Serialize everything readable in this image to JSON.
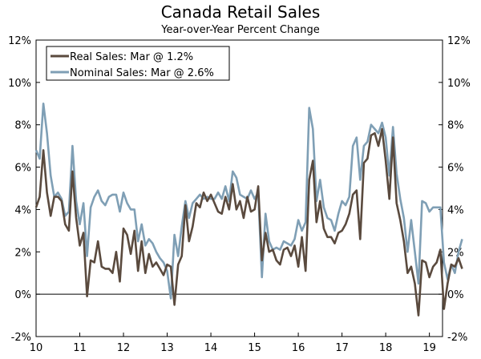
{
  "chart_data": {
    "type": "line",
    "title": "Canada Retail Sales",
    "subtitle": "Year-over-Year Percent Change",
    "xlabel": "",
    "ylabel": "",
    "xlim": [
      2010.0,
      2019.3
    ],
    "ylim": [
      -2,
      12
    ],
    "x_ticks": [
      2010,
      2011,
      2012,
      2013,
      2014,
      2015,
      2016,
      2017,
      2018,
      2019
    ],
    "x_tick_labels": [
      "10",
      "11",
      "12",
      "13",
      "14",
      "15",
      "16",
      "17",
      "18",
      "19"
    ],
    "y_ticks": [
      -2,
      0,
      2,
      4,
      6,
      8,
      10,
      12
    ],
    "y_tick_labels": [
      "-2%",
      "0%",
      "2%",
      "4%",
      "6%",
      "8%",
      "10%",
      "12%"
    ],
    "grid": false,
    "zero_line": true,
    "legend_position": "top-left",
    "series": [
      {
        "name": "Real Sales: Mar @ 1.2%",
        "color": "#5a4a3e",
        "x_start": 2010.0,
        "step": 0.08333,
        "values": [
          4.1,
          4.6,
          6.8,
          4.8,
          3.7,
          4.6,
          4.6,
          4.4,
          3.3,
          3.0,
          5.8,
          3.6,
          2.3,
          2.9,
          -0.1,
          1.6,
          1.5,
          2.5,
          1.3,
          1.2,
          1.2,
          1.0,
          2.0,
          0.6,
          3.1,
          2.8,
          1.9,
          3.0,
          1.1,
          2.5,
          1.0,
          1.9,
          1.3,
          1.5,
          1.2,
          0.9,
          1.4,
          1.3,
          -0.5,
          1.4,
          1.8,
          4.2,
          2.5,
          3.2,
          4.3,
          4.1,
          4.8,
          4.4,
          4.7,
          4.3,
          3.9,
          3.8,
          4.6,
          4.0,
          5.2,
          4.0,
          4.4,
          3.6,
          4.6,
          3.9,
          4.0,
          5.1,
          1.6,
          2.9,
          2.0,
          2.1,
          1.6,
          1.4,
          2.1,
          2.2,
          1.8,
          2.3,
          1.3,
          2.7,
          1.1,
          5.4,
          6.3,
          3.4,
          4.4,
          3.1,
          2.7,
          2.7,
          2.4,
          2.9,
          3.0,
          3.3,
          3.8,
          4.7,
          4.9,
          2.6,
          6.2,
          6.4,
          7.5,
          7.6,
          7.0,
          7.8,
          6.3,
          4.5,
          7.4,
          4.3,
          3.5,
          2.5,
          1.0,
          1.3,
          0.5,
          -1.0,
          1.6,
          1.5,
          0.8,
          1.3,
          1.5,
          2.1,
          -0.7,
          0.5,
          1.4,
          1.3,
          1.7,
          1.2
        ]
      },
      {
        "name": "Nominal Sales: Mar @ 2.6%",
        "color": "#7f9fb5",
        "x_start": 2010.0,
        "step": 0.08333,
        "values": [
          6.8,
          6.4,
          9.0,
          7.6,
          5.6,
          4.6,
          4.8,
          4.5,
          3.7,
          3.9,
          7.0,
          4.4,
          3.3,
          4.3,
          1.8,
          4.1,
          4.6,
          4.9,
          4.4,
          4.2,
          4.6,
          4.7,
          4.7,
          3.9,
          4.8,
          4.3,
          4.0,
          4.0,
          2.5,
          3.3,
          2.3,
          2.6,
          2.4,
          2.0,
          1.7,
          1.5,
          1.1,
          -0.2,
          2.8,
          1.8,
          3.2,
          4.4,
          3.6,
          4.3,
          4.5,
          4.7,
          4.5,
          4.6,
          4.5,
          4.5,
          4.8,
          4.5,
          5.1,
          4.4,
          5.8,
          5.5,
          4.7,
          4.6,
          4.5,
          4.9,
          4.5,
          4.8,
          0.8,
          3.8,
          2.5,
          2.1,
          2.2,
          2.1,
          2.5,
          2.4,
          2.3,
          2.6,
          3.5,
          3.0,
          3.4,
          8.8,
          7.8,
          4.4,
          5.4,
          4.1,
          3.6,
          3.5,
          3.0,
          3.8,
          4.4,
          4.2,
          4.6,
          7.0,
          7.4,
          5.4,
          7.0,
          7.2,
          8.0,
          7.8,
          7.6,
          8.1,
          7.4,
          5.6,
          7.9,
          5.7,
          4.5,
          3.6,
          2.0,
          3.5,
          2.0,
          0.5,
          4.4,
          4.3,
          3.9,
          4.1,
          4.1,
          4.1,
          1.5,
          0.7,
          1.4,
          1.0,
          2.0,
          2.6
        ]
      }
    ]
  }
}
